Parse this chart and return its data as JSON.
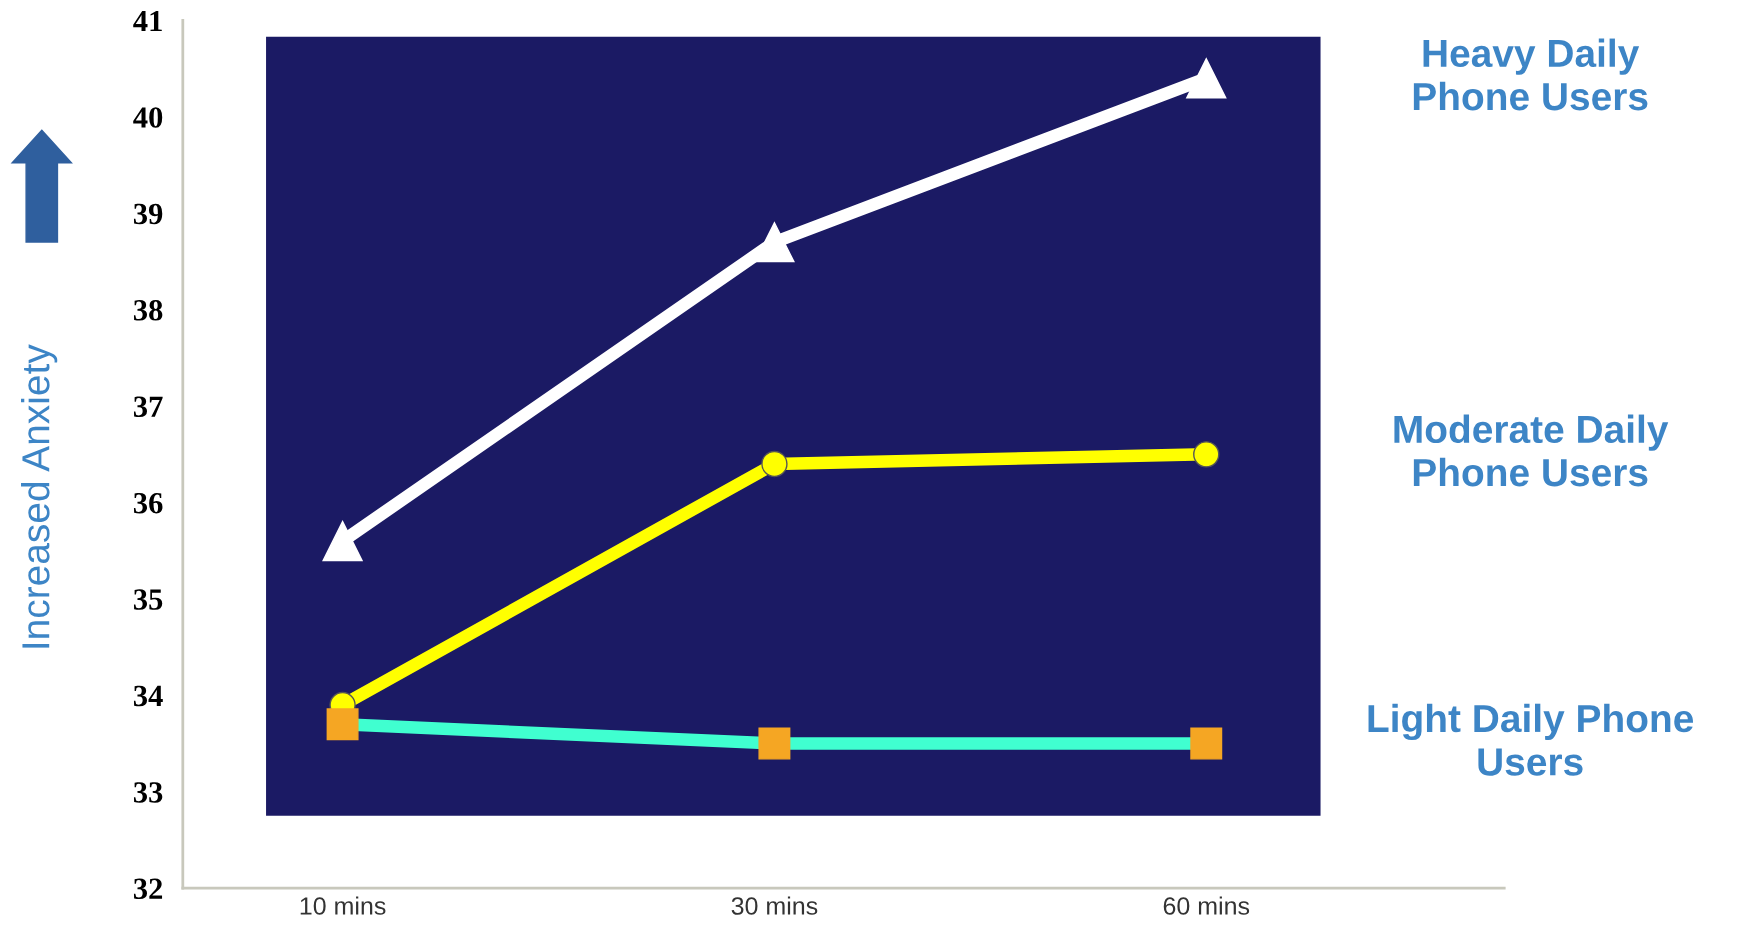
{
  "chart_data": {
    "type": "line",
    "ylabel": "Increased Anxiety",
    "categories": [
      "10 mins",
      "30 mins",
      "60 mins"
    ],
    "series": [
      {
        "name": "Heavy Daily\nPhone Users",
        "color": "#ffffff",
        "marker": "triangle",
        "values": [
          35.6,
          38.7,
          40.4
        ]
      },
      {
        "name": "Moderate Daily\nPhone Users",
        "color": "#ffff00",
        "marker": "circle",
        "values": [
          33.9,
          36.4,
          36.5
        ]
      },
      {
        "name": "Light Daily Phone\nUsers",
        "color": "#40ffd0",
        "marker": "square",
        "values": [
          33.7,
          33.5,
          33.5
        ]
      }
    ],
    "ylim": [
      32,
      41
    ],
    "yticks": [
      32,
      33,
      34,
      35,
      36,
      37,
      38,
      39,
      40,
      41
    ],
    "bands": [
      {
        "axis": "y",
        "from": 32.75,
        "to": 40.83,
        "color": "#1b1a64"
      }
    ],
    "grid": false,
    "legend": false,
    "line_style": "solid"
  }
}
